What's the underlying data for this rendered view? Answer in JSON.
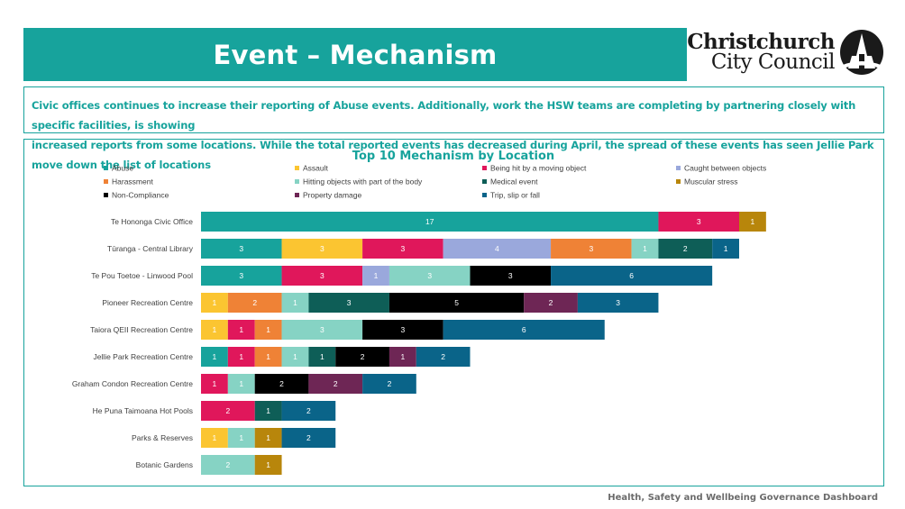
{
  "header": {
    "title": "Event – Mechanism",
    "logo_line1": "Christchurch",
    "logo_line2": "City Council"
  },
  "summary": {
    "line1": "Civic offices continues to increase their reporting of Abuse events. Additionally, work the HSW teams are completing by partnering closely with specific facilities, is showing",
    "line2": "increased reports from some locations. While the total reported events has decreased during April, the spread of these events has seen Jellie Park move down the list of locations"
  },
  "footer": {
    "text": "Health, Safety and Wellbeing Governance Dashboard"
  },
  "colors": {
    "brand_teal": "#17a39c"
  },
  "chart_data": {
    "type": "bar",
    "orientation": "horizontal",
    "stacked": true,
    "title": "Top 10 Mechanism by Location",
    "legend_position": "top",
    "grid": false,
    "categories": [
      "Te Hononga Civic Office",
      "Tūranga - Central Library",
      "Te Pou Toetoe - Linwood Pool",
      "Pioneer Recreation Centre",
      "Taiora QEII Recreation Centre",
      "Jellie Park Recreation Centre",
      "Graham Condon Recreation Centre",
      "He Puna Taimoana Hot Pools",
      "Parks & Reserves",
      "Botanic Gardens"
    ],
    "series": [
      {
        "name": "Abuse",
        "color": "#17a39c",
        "values": [
          17,
          3,
          3,
          0,
          0,
          1,
          0,
          0,
          0,
          0
        ]
      },
      {
        "name": "Assault",
        "color": "#fbc531",
        "values": [
          0,
          3,
          0,
          1,
          1,
          0,
          0,
          0,
          1,
          0
        ]
      },
      {
        "name": "Being hit by a moving object",
        "color": "#e0175b",
        "values": [
          3,
          3,
          3,
          0,
          1,
          1,
          1,
          2,
          0,
          0
        ]
      },
      {
        "name": "Caught between objects",
        "color": "#9aa8dc",
        "values": [
          0,
          4,
          1,
          0,
          0,
          0,
          0,
          0,
          0,
          0
        ]
      },
      {
        "name": "Harassment",
        "color": "#ef8236",
        "values": [
          0,
          3,
          0,
          2,
          1,
          1,
          0,
          0,
          0,
          0
        ]
      },
      {
        "name": "Hitting objects with part of the body",
        "color": "#86d3c4",
        "values": [
          0,
          1,
          3,
          1,
          3,
          1,
          1,
          0,
          1,
          2
        ]
      },
      {
        "name": "Medical event",
        "color": "#0e5e57",
        "values": [
          0,
          2,
          0,
          3,
          0,
          1,
          0,
          1,
          0,
          0
        ]
      },
      {
        "name": "Muscular stress",
        "color": "#b8860b",
        "values": [
          1,
          0,
          0,
          0,
          0,
          0,
          0,
          0,
          1,
          1
        ]
      },
      {
        "name": "Non-Compliance",
        "color": "#000000",
        "values": [
          0,
          0,
          3,
          5,
          3,
          2,
          2,
          0,
          0,
          0
        ]
      },
      {
        "name": "Property damage",
        "color": "#6e2655",
        "values": [
          0,
          0,
          0,
          2,
          0,
          1,
          2,
          0,
          0,
          0
        ]
      },
      {
        "name": "Trip, slip or fall",
        "color": "#0a6489",
        "values": [
          0,
          1,
          6,
          3,
          6,
          2,
          2,
          2,
          2,
          0
        ]
      }
    ]
  }
}
